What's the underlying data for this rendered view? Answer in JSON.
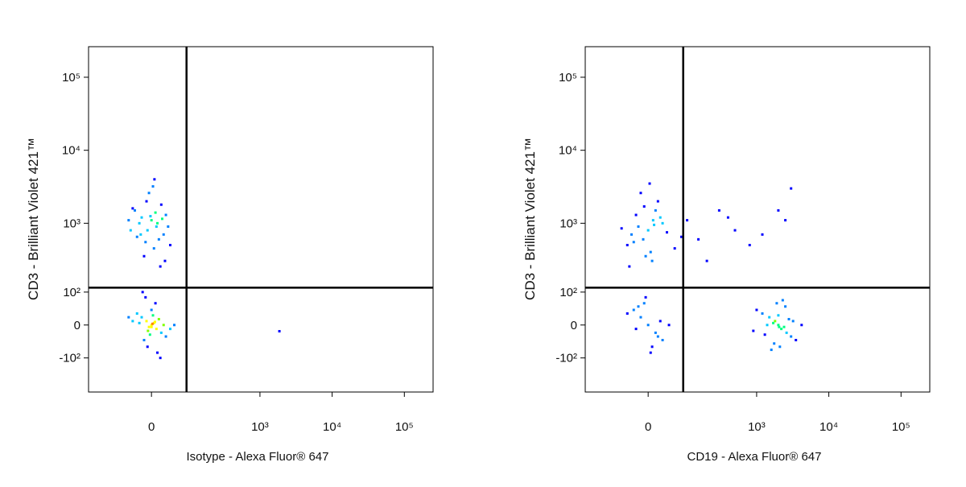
{
  "chart_data": [
    {
      "type": "scatter",
      "scale": "biexponential",
      "x_label": "Isotype - Alexa Fluor® 647",
      "y_label": "CD3 - Brilliant Violet 421™",
      "xlim": [
        -230,
        250000
      ],
      "ylim": [
        -330,
        262000
      ],
      "xticks": [
        0,
        {
          "value": 1000,
          "label": "10³"
        },
        {
          "value": 10000,
          "label": "10⁴"
        },
        {
          "value": 100000,
          "label": "10⁵"
        }
      ],
      "yticks": [
        {
          "value": -100,
          "label": "-10²"
        },
        0,
        {
          "value": 100,
          "label": "10²"
        },
        {
          "value": 1000,
          "label": "10³"
        },
        {
          "value": 10000,
          "label": "10⁴"
        },
        {
          "value": 100000,
          "label": "10⁵"
        }
      ],
      "gate": {
        "x": 86,
        "y": 119
      },
      "x": [
        -20,
        10,
        -35,
        25,
        0,
        -10,
        15,
        -45,
        30,
        5,
        -25,
        20,
        -5,
        40,
        -15,
        8,
        -30,
        12,
        -8,
        22,
        -40,
        3,
        18,
        -12,
        35,
        -2,
        28,
        -22,
        6,
        -50,
        0,
        -10,
        10,
        -20,
        20,
        5,
        -5,
        -30,
        30,
        15,
        -15,
        0,
        8,
        -8,
        25,
        -25,
        40,
        -40,
        12,
        -12,
        3,
        -3,
        18,
        -18,
        50,
        -50,
        0,
        7,
        -7,
        2,
        1860
      ],
      "values": [
        1200,
        900,
        1500,
        700,
        1100,
        2000,
        600,
        800,
        1300,
        450,
        1000,
        1800,
        2600,
        500,
        350,
        1400,
        650,
        1000,
        800,
        1150,
        1600,
        3200,
        250,
        550,
        900,
        1250,
        300,
        700,
        4000,
        1100,
        0,
        10,
        -10,
        20,
        -20,
        5,
        -5,
        30,
        -30,
        15,
        -40,
        40,
        60,
        -60,
        0,
        5,
        -10,
        10,
        -80,
        80,
        25,
        -25,
        -100,
        100,
        0,
        20,
        -5,
        8,
        -15,
        3,
        -16
      ]
    },
    {
      "type": "scatter",
      "scale": "biexponential",
      "x_label": "CD19 - Alexa Fluor® 647",
      "y_label": "CD3 - Brilliant Violet 421™",
      "xlim": [
        -230,
        250000
      ],
      "ylim": [
        -330,
        262000
      ],
      "xticks": [
        0,
        {
          "value": 1000,
          "label": "10³"
        },
        {
          "value": 10000,
          "label": "10⁴"
        },
        {
          "value": 100000,
          "label": "10⁵"
        }
      ],
      "yticks": [
        {
          "value": -100,
          "label": "-10²"
        },
        0,
        {
          "value": 100,
          "label": "10²"
        },
        {
          "value": 1000,
          "label": "10³"
        },
        {
          "value": 10000,
          "label": "10⁴"
        },
        {
          "value": 100000,
          "label": "10⁵"
        }
      ],
      "gate": {
        "x": 86,
        "y": 119
      },
      "x": [
        -20,
        10,
        -35,
        25,
        0,
        -10,
        15,
        -45,
        30,
        5,
        -25,
        20,
        -5,
        40,
        -15,
        8,
        -30,
        12,
        -8,
        60,
        -60,
        80,
        100,
        -40,
        3,
        0,
        -15,
        15,
        -30,
        30,
        8,
        -8,
        25,
        -25,
        45,
        -45,
        5,
        -5,
        20,
        -20,
        2000,
        1800,
        2200,
        1500,
        2600,
        1200,
        3000,
        1700,
        2400,
        1000,
        3500,
        1900,
        2100,
        1400,
        2800,
        900,
        4200,
        1600,
        2300,
        2000,
        1300,
        3200,
        1750,
        2500,
        2050,
        150,
        300,
        500,
        1200,
        2500,
        3000,
        200,
        800,
        400,
        2000
      ],
      "values": [
        900,
        1100,
        700,
        1200,
        800,
        600,
        1500,
        500,
        1000,
        400,
        1300,
        2000,
        350,
        750,
        2600,
        300,
        550,
        950,
        1700,
        450,
        850,
        650,
        1100,
        250,
        3500,
        0,
        20,
        -20,
        40,
        -40,
        -60,
        60,
        10,
        -10,
        0,
        30,
        -80,
        80,
        -30,
        50,
        0,
        10,
        -10,
        20,
        -20,
        30,
        -30,
        5,
        -5,
        40,
        -40,
        60,
        -60,
        0,
        15,
        -15,
        0,
        -70,
        70,
        25,
        -25,
        10,
        -50,
        50,
        -5,
        600,
        1500,
        800,
        700,
        1100,
        3000,
        300,
        500,
        1200,
        1500
      ]
    }
  ]
}
